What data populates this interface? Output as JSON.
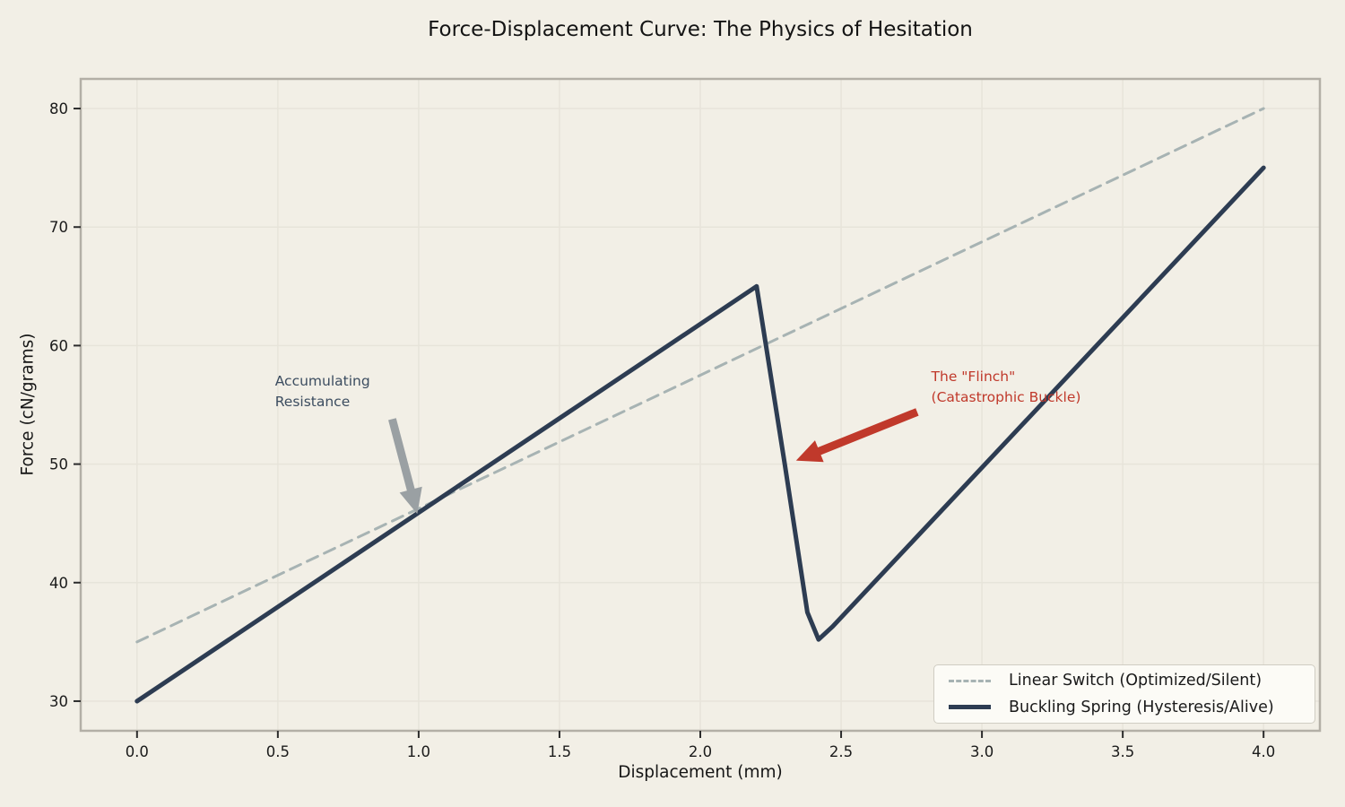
{
  "figure": {
    "background_color": "#f2efe6",
    "grid_color": "#e7e4da",
    "spine_color": "#b3afa6",
    "tick_color": "#2b2b2b",
    "tick_label_color": "#1b1b1b"
  },
  "chart_data": {
    "type": "line",
    "title": "Force-Displacement Curve: The Physics of Hesitation",
    "xlabel": "Displacement (mm)",
    "ylabel": "Force (cN/grams)",
    "xlim": [
      -0.2,
      4.2
    ],
    "ylim": [
      27.5,
      82.5
    ],
    "grid": true,
    "legend_position": "lower right",
    "xticks": [
      {
        "value": 0.0,
        "label": "0.0"
      },
      {
        "value": 0.5,
        "label": "0.5"
      },
      {
        "value": 1.0,
        "label": "1.0"
      },
      {
        "value": 1.5,
        "label": "1.5"
      },
      {
        "value": 2.0,
        "label": "2.0"
      },
      {
        "value": 2.5,
        "label": "2.5"
      },
      {
        "value": 3.0,
        "label": "3.0"
      },
      {
        "value": 3.5,
        "label": "3.5"
      },
      {
        "value": 4.0,
        "label": "4.0"
      }
    ],
    "yticks": [
      {
        "value": 30,
        "label": "30"
      },
      {
        "value": 40,
        "label": "40"
      },
      {
        "value": 50,
        "label": "50"
      },
      {
        "value": 60,
        "label": "60"
      },
      {
        "value": 70,
        "label": "70"
      },
      {
        "value": 80,
        "label": "80"
      }
    ],
    "series": [
      {
        "name": "Linear Switch (Optimized/Silent)",
        "style": "dashed",
        "color": "#a7b3b3",
        "width": 3,
        "points": [
          [
            0,
            35
          ],
          [
            4,
            80
          ]
        ]
      },
      {
        "name": "Buckling Spring (Hysteresis/Alive)",
        "style": "solid",
        "color": "#2d3c52",
        "width": 5,
        "points": [
          [
            0,
            30
          ],
          [
            2.2,
            65
          ],
          [
            2.3,
            50
          ],
          [
            2.38,
            37.5
          ],
          [
            2.42,
            35.2
          ],
          [
            2.47,
            36.3
          ],
          [
            4,
            75
          ]
        ]
      }
    ],
    "annotations": [
      {
        "id": "accumulating-resistance",
        "line1": "Accumulating",
        "line2": "Resistance",
        "color": "#3c4d60",
        "text_x": 0.49,
        "text_y": 57.8,
        "arrow": {
          "from_x": 0.906,
          "from_y": 53.8,
          "to_x": 0.995,
          "to_y": 45.8,
          "color": "#9aa0a3"
        }
      },
      {
        "id": "flinch-catastrophic-buckle",
        "line1": "The \"Flinch\"",
        "line2": "(Catastrophic Buckle)",
        "color": "#c0392b",
        "text_x": 2.82,
        "text_y": 58.2,
        "arrow": {
          "from_x": 2.77,
          "from_y": 54.4,
          "to_x": 2.34,
          "to_y": 50.3,
          "color": "#c0392b"
        }
      }
    ]
  }
}
